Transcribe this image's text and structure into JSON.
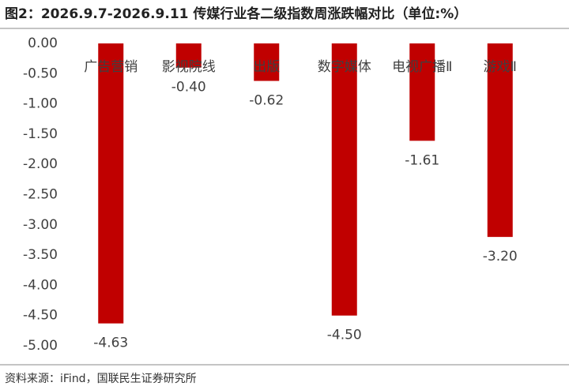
{
  "chart_data": {
    "type": "bar",
    "title": "图2：2026.9.7-2026.9.11 传媒行业各二级指数周涨跌幅对比（单位:%）",
    "source": "资料来源：iFind，国联民生证券研究所",
    "categories": [
      "广告营销",
      "影视院线",
      "出版",
      "数字媒体",
      "电视广播Ⅱ",
      "游戏Ⅱ"
    ],
    "values": [
      -4.63,
      -0.4,
      -0.62,
      -4.5,
      -1.61,
      -3.2
    ],
    "value_labels": [
      "-4.63",
      "-0.40",
      "-0.62",
      "-4.50",
      "-1.61",
      "-3.20"
    ],
    "color": "#c00000",
    "ylim": [
      -5,
      0
    ],
    "yticks": [
      {
        "value": 0,
        "label": "0.00"
      },
      {
        "value": -0.5,
        "label": "-0.50"
      },
      {
        "value": -1,
        "label": "-1.00"
      },
      {
        "value": -1.5,
        "label": "-1.50"
      },
      {
        "value": -2,
        "label": "-2.00"
      },
      {
        "value": -2.5,
        "label": "-2.50"
      },
      {
        "value": -3,
        "label": "-3.00"
      },
      {
        "value": -3.5,
        "label": "-3.50"
      },
      {
        "value": -4,
        "label": "-4.00"
      },
      {
        "value": -4.5,
        "label": "-4.50"
      },
      {
        "value": -5,
        "label": "-5.00"
      }
    ],
    "grid": false
  }
}
